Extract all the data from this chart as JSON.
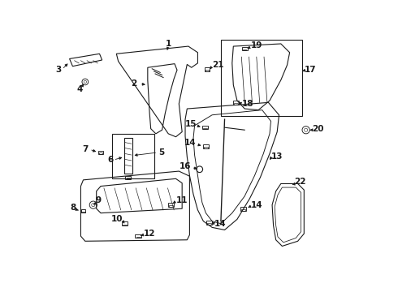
{
  "bg_color": "#ffffff",
  "line_color": "#1a1a1a",
  "lw": 0.8,
  "fs": 7.5,
  "alw": 0.6
}
